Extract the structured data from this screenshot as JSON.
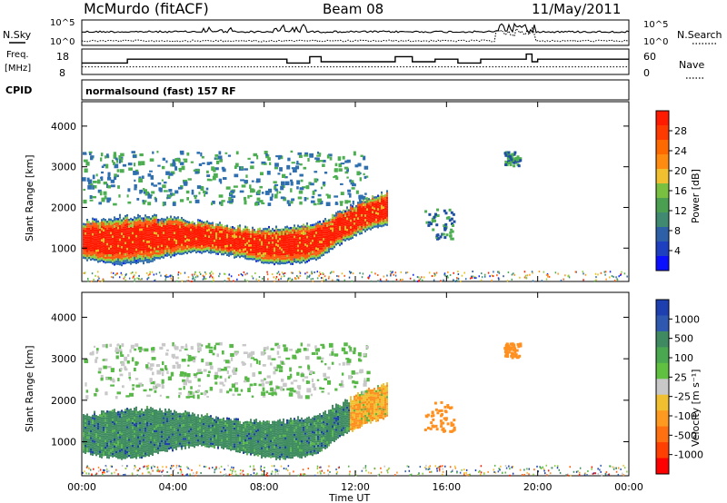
{
  "header": {
    "station": "McMurdo (fitACF)",
    "beam": "Beam 08",
    "date": "11/May/2011"
  },
  "top_panels": {
    "nsky_label": "N.Sky",
    "nsearch_label": "N.Search",
    "noise_ticks_left": [
      "10^5",
      "10^0"
    ],
    "noise_ticks_right": [
      "10^5",
      "10^0"
    ],
    "freq_label_1": "Freq.",
    "freq_label_2": "[MHz]",
    "freq_ticks": [
      "18",
      "8"
    ],
    "nave_label": "Nave",
    "nave_ticks": [
      "60",
      "0"
    ],
    "cpid_label": "CPID",
    "cpid_text": "normalsound (fast) 157 RF"
  },
  "colors": {
    "power": [
      "#1428ff",
      "#1e4fa0",
      "#2f6fb0",
      "#3f9070",
      "#4cae50",
      "#8fcf3c",
      "#e6c21a",
      "#ff9a1a",
      "#ff5a10",
      "#ff1a00"
    ],
    "velocity": [
      "#1e3fb0",
      "#2f5fb8",
      "#3f8c60",
      "#58b848",
      "#8ad040",
      "#c8c8c8",
      "#f0c030",
      "#ff9020",
      "#ff6010",
      "#ff1a00"
    ],
    "power_legend": [
      "#ff1a00",
      "#ff3a00",
      "#ff6a00",
      "#ff8c10",
      "#f0c030",
      "#7ac040",
      "#4aa050",
      "#3f8a70",
      "#2e60a8",
      "#1e40c0",
      "#0a10ff"
    ],
    "velocity_legend": [
      "#1e3fb0",
      "#2f58b0",
      "#3f8a60",
      "#4aa850",
      "#60c040",
      "#c8c8c8",
      "#f0c030",
      "#ff9a20",
      "#ff7010",
      "#ff4000",
      "#ff0000"
    ]
  },
  "chart_data": [
    {
      "type": "line",
      "title": "",
      "series": [
        {
          "name": "N.Sky",
          "style": "solid"
        },
        {
          "name": "N.Search",
          "style": "dotted"
        }
      ],
      "ylabel": "",
      "note": "Noise time series on a log scale from 10^0 to 10^5"
    },
    {
      "type": "line",
      "series": [
        {
          "name": "Freq.",
          "style": "solid",
          "unit": "MHz",
          "x": [
            "00:00",
            "01:45",
            "02:00",
            "05:30",
            "06:00",
            "08:30",
            "09:00",
            "10:00",
            "10:30",
            "13:00",
            "13:45",
            "14:30",
            "15:30",
            "16:30",
            "17:30",
            "18:30",
            "19:30",
            "19:45",
            "20:00",
            "24:00"
          ],
          "y": [
            12.5,
            12.5,
            14,
            14,
            14,
            14,
            12.5,
            15,
            13,
            13,
            15,
            13,
            14,
            12.5,
            14,
            14,
            16,
            13,
            14,
            14
          ]
        },
        {
          "name": "Nave",
          "style": "dotted",
          "x": [
            "00:00",
            "24:00"
          ],
          "y": [
            18,
            18
          ]
        }
      ],
      "ylim_freq": [
        8,
        18
      ],
      "ylim_nave": [
        0,
        60
      ]
    },
    {
      "type": "heatmap",
      "xlabel": "Time UT",
      "ylabel": "Slant Range [km]",
      "colorbar_label": "Power [dB]",
      "colorbar_ticks": [
        "28",
        "24",
        "20",
        "16",
        "12",
        "8",
        "4"
      ],
      "xlim": [
        "00:00",
        "24:00"
      ],
      "ylim": [
        180,
        4600
      ],
      "yticks": [
        1000,
        2000,
        3000,
        4000
      ],
      "regions": [
        {
          "x": [
            0,
            13.5
          ],
          "y": [
            700,
            1700
          ],
          "value": 26
        },
        {
          "x": [
            0,
            13.5
          ],
          "y": [
            2000,
            3300
          ],
          "value": 12
        },
        {
          "x": [
            15,
            16.5
          ],
          "y": [
            1200,
            2000
          ],
          "value": 6
        },
        {
          "x": [
            18.5,
            19.2
          ],
          "y": [
            3000,
            3400
          ],
          "value": 12
        }
      ]
    },
    {
      "type": "heatmap",
      "xlabel": "Time UT",
      "ylabel": "Slant Range [km]",
      "colorbar_label": "Velocity [m s⁻¹]",
      "colorbar_ticks": [
        "1000",
        "500",
        "100",
        "25",
        "-25",
        "-100",
        "-500",
        "-1000"
      ],
      "xlim": [
        "00:00",
        "24:00"
      ],
      "ylim": [
        180,
        4600
      ],
      "yticks": [
        1000,
        2000,
        3000,
        4000
      ],
      "xticks": [
        "00:00",
        "04:00",
        "08:00",
        "12:00",
        "16:00",
        "20:00",
        "00:00"
      ],
      "regions": [
        {
          "x": [
            0,
            13
          ],
          "y": [
            600,
            1750
          ],
          "value": 200
        },
        {
          "x": [
            12,
            13.5
          ],
          "y": [
            1200,
            2000
          ],
          "value": -200
        },
        {
          "x": [
            15,
            16.5
          ],
          "y": [
            1200,
            2000
          ],
          "value": -300
        },
        {
          "x": [
            0,
            13
          ],
          "y": [
            2300,
            3300
          ],
          "value": 40
        }
      ]
    }
  ],
  "axes": {
    "yticks": [
      "1000",
      "2000",
      "3000",
      "4000"
    ],
    "xticks": [
      "00:00",
      "04:00",
      "08:00",
      "12:00",
      "16:00",
      "20:00",
      "00:00"
    ],
    "ylabel": "Slant Range [km]",
    "xlabel": "Time UT",
    "power_cb_label": "Power [dB]",
    "power_cb_ticks": [
      "28",
      "24",
      "20",
      "16",
      "12",
      "8",
      "4"
    ],
    "vel_cb_label": "Velocity [m s⁻¹]",
    "vel_cb_ticks": [
      "1000",
      "500",
      "100",
      "25",
      "-25",
      "-100",
      "-500",
      "-1000"
    ]
  }
}
